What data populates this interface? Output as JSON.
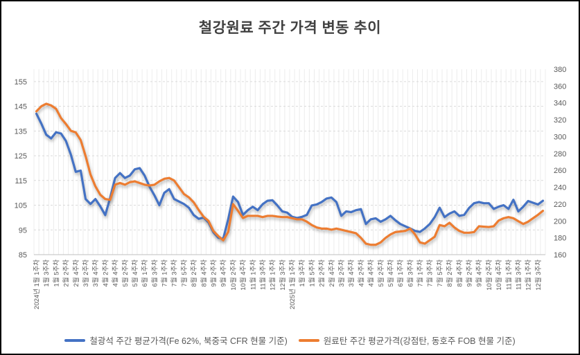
{
  "title": "철강원료 주간 가격 변동 추이",
  "chart_data": {
    "type": "line",
    "title": "철강원료 주간 가격 변동 추이",
    "grid": {
      "vertical_weekly": true,
      "horizontal_dashed": true
    },
    "legend_position": "bottom",
    "left_axis": {
      "min": 85,
      "max": 160,
      "ticks": [
        85,
        95,
        105,
        115,
        125,
        135,
        145,
        155
      ]
    },
    "right_axis": {
      "min": 160,
      "max": 380,
      "ticks": [
        160,
        180,
        200,
        220,
        240,
        260,
        280,
        300,
        320,
        340,
        360,
        380
      ]
    },
    "x_tick_step": 2,
    "x_tick_labels": [
      "2024년 1월 1주차",
      "1월 3주차",
      "1월 5주차",
      "2월 2주차",
      "2월 4주차",
      "3월 2주차",
      "3월 4주차",
      "4월 2주차",
      "4월 4주차",
      "5월 2주차",
      "5월 4주차",
      "6월 1주차",
      "6월 3주차",
      "7월 1주차",
      "7월 3주차",
      "7월 5주차",
      "8월 2주차",
      "8월 4주차",
      "9월 2주차",
      "9월 4주차",
      "10월 2주차",
      "10월 4주차",
      "11월 1주차",
      "11월 3주차",
      "12월 1주차",
      "12월 3주차",
      "2025년 1월 1주차",
      "1월 3주차",
      "1월 5주차",
      "2월 2주차",
      "2월 4주차",
      "3월 2주차",
      "3월 4주차",
      "4월 2주차",
      "4월 4주차",
      "5월 2주차",
      "5월 4주차",
      "6월 1주차",
      "6월 3주차",
      "7월 1주차",
      "7월 3주차",
      "7월 5주차",
      "8월 2주차",
      "8월 4주차",
      "9월 2주차",
      "9월 4주차",
      "10월 2주차",
      "10월 4주차",
      "11월 1주차",
      "11월 3주차",
      "12월 1주차",
      "12월 3주차"
    ],
    "series": [
      {
        "name": "철광석 주간 평균가격(Fe 62%, 북중국 CFR 현물 기준)",
        "axis": "left",
        "color": "#4472C4",
        "values": [
          142,
          138,
          133.5,
          132,
          134.5,
          134,
          131,
          125.5,
          118.5,
          119,
          107.5,
          105.5,
          107.5,
          104.5,
          101,
          108,
          116,
          118,
          116,
          117,
          119.5,
          120,
          117,
          112.5,
          109,
          105,
          110,
          111.5,
          107.5,
          106.5,
          105.5,
          104,
          101,
          99.5,
          100,
          98,
          94,
          91.8,
          91.5,
          99.3,
          108.5,
          106.3,
          101.1,
          103,
          104.4,
          103,
          105.4,
          106.8,
          107,
          104.9,
          102.5,
          102,
          100.3,
          99.8,
          100.3,
          101.1,
          104.9,
          105.3,
          106.3,
          107.7,
          108.1,
          106.3,
          100.7,
          102.5,
          102.2,
          103,
          103.4,
          97.4,
          99.3,
          99.7,
          98.3,
          99.3,
          100.7,
          98.9,
          97.4,
          96.5,
          95.6,
          94.6,
          94.2,
          95.6,
          97.4,
          100.2,
          104,
          100.2,
          101.6,
          102.5,
          100.7,
          101.1,
          103.9,
          105.8,
          106.3,
          105.8,
          105.8,
          103.5,
          104.4,
          105,
          103.5,
          107.2,
          102.5,
          104.4,
          106.7,
          106,
          105.3,
          106.8
        ]
      },
      {
        "name": "원료탄 주간 평균가격(강점탄, 동호주 FOB 현물 기준)",
        "axis": "right",
        "color": "#ED7D31",
        "values": [
          330,
          336,
          339,
          337,
          333,
          322,
          315,
          307,
          305,
          296,
          277,
          255,
          241,
          231,
          226,
          225,
          243,
          245,
          243,
          246,
          247,
          245,
          243,
          242,
          243,
          247,
          250,
          251,
          248,
          240,
          232,
          228,
          222,
          213,
          205,
          200,
          188,
          182,
          177,
          187,
          220,
          212,
          203.5,
          206,
          206,
          206,
          204.6,
          206,
          206,
          205.2,
          204.6,
          204.6,
          203.3,
          201.9,
          201.9,
          199.1,
          195.1,
          192.3,
          190.9,
          190.9,
          189.6,
          190.9,
          189.6,
          188.2,
          186.8,
          185.4,
          179.9,
          173.1,
          171.7,
          171.7,
          174.5,
          179.9,
          184,
          186.8,
          187.5,
          188.2,
          190.9,
          184,
          174.5,
          173.1,
          177.2,
          181.3,
          195.1,
          193.7,
          197.8,
          192.3,
          188.2,
          186,
          186,
          186.8,
          193.7,
          193.2,
          192.8,
          193.7,
          200.5,
          203.2,
          204.6,
          203.2,
          199.7,
          196.4,
          199.1,
          203.2,
          207.3,
          212
        ]
      }
    ]
  }
}
